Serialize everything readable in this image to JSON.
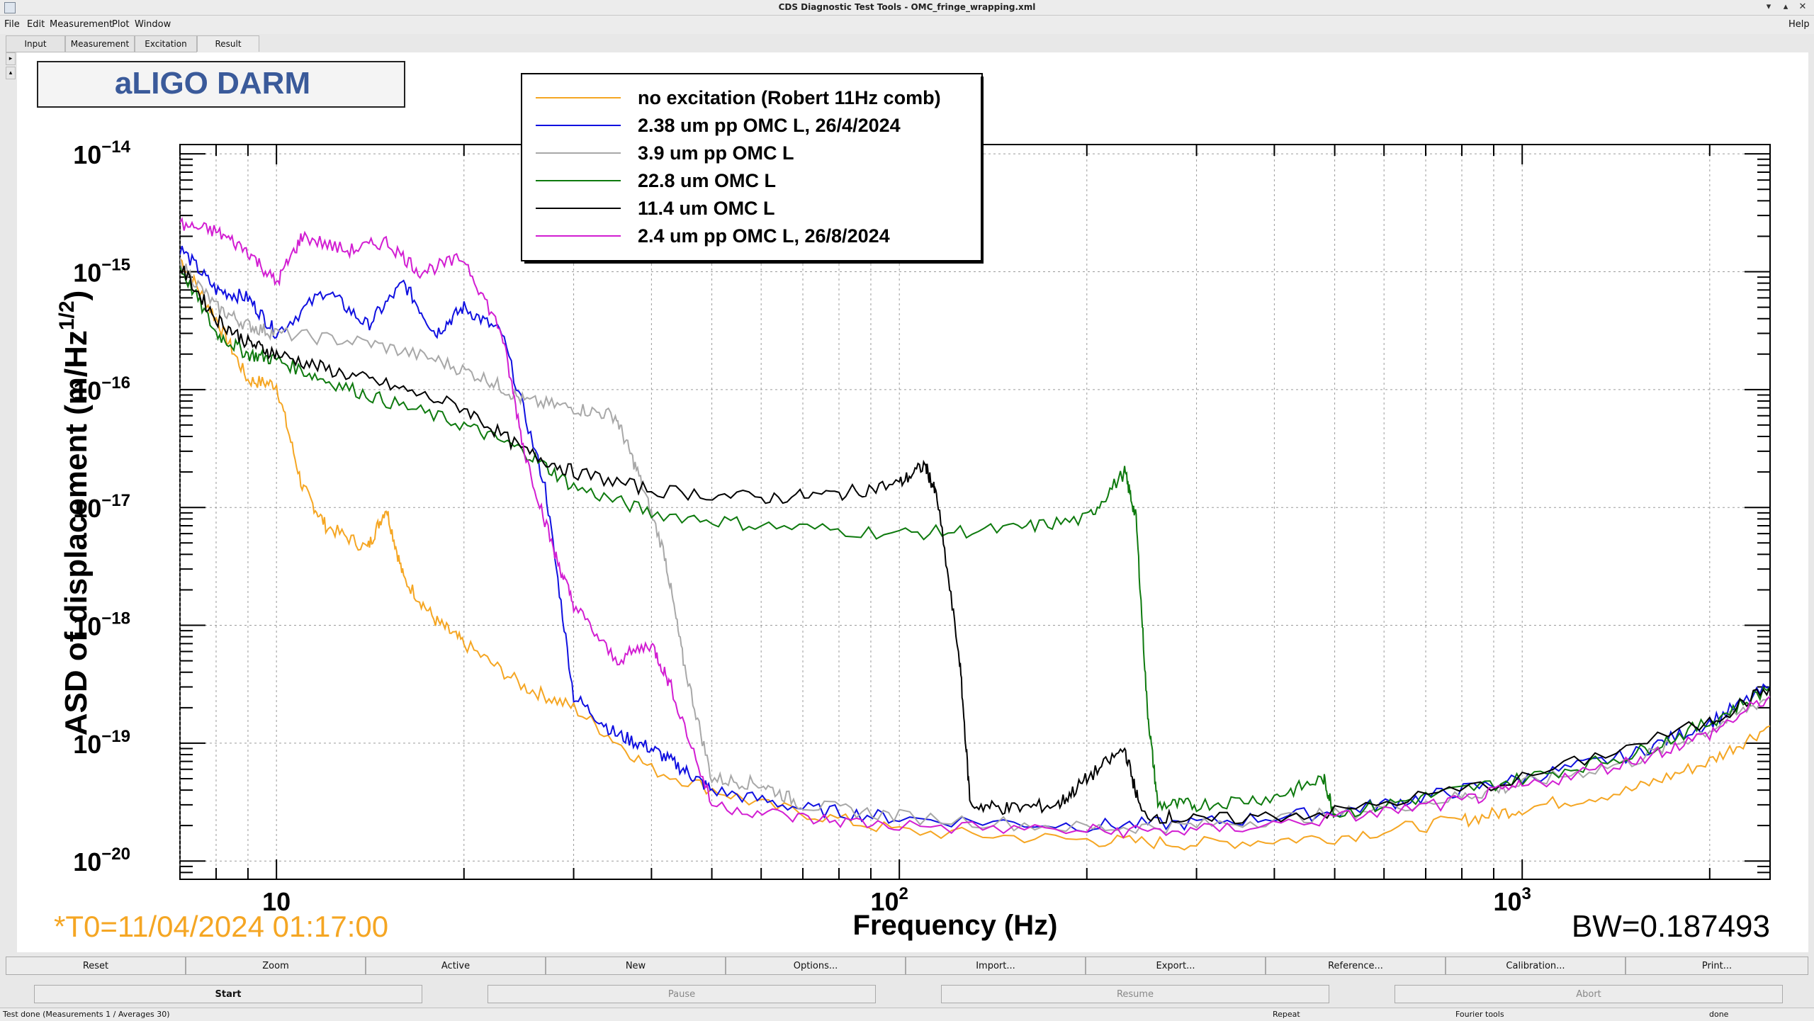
{
  "window": {
    "title": "CDS Diagnostic Test Tools - OMC_fringe_wrapping.xml",
    "help_label": "Help"
  },
  "menu": [
    "File",
    "Edit",
    "Measurement",
    "Plot",
    "Window"
  ],
  "tabs": [
    "Input",
    "Measurement",
    "Excitation",
    "Result"
  ],
  "plot": {
    "title_box": "aLIGO DARM",
    "timestamp": "*T0=11/04/2024 01:17:00",
    "bw": "BW=0.187493",
    "ylabel_main": "ASD of displacement (m/Hz",
    "ylabel_sup": "1/2",
    "ylabel_close": ")"
  },
  "chart_data": {
    "type": "line",
    "xlabel": "Frequency (Hz)",
    "xscale": "log",
    "yscale": "log",
    "xlim": [
      7,
      2500
    ],
    "ylim": [
      7e-21,
      1.2e-14
    ],
    "grid": true,
    "legend_position": "top-center",
    "x_tick_labels": [
      {
        "base": "10",
        "exp": ""
      },
      {
        "base": "10",
        "exp": "2"
      },
      {
        "base": "10",
        "exp": "3"
      }
    ],
    "y_tick_labels": [
      {
        "base": "10",
        "exp": "−14"
      },
      {
        "base": "10",
        "exp": "−15"
      },
      {
        "base": "10",
        "exp": "−16"
      },
      {
        "base": "10",
        "exp": "−17"
      },
      {
        "base": "10",
        "exp": "−18"
      },
      {
        "base": "10",
        "exp": "−19"
      },
      {
        "base": "10",
        "exp": "−20"
      }
    ],
    "series": [
      {
        "name": "no excitation (Robert 11Hz comb)",
        "color": "#f5a623",
        "points": [
          [
            7,
            1.3e-15
          ],
          [
            8,
            4e-16
          ],
          [
            9,
            1.2e-16
          ],
          [
            10,
            1.1e-16
          ],
          [
            11,
            1.5e-17
          ],
          [
            12,
            7e-18
          ],
          [
            14,
            4.5e-18
          ],
          [
            15,
            1e-17
          ],
          [
            16,
            2.5e-18
          ],
          [
            18,
            1.1e-18
          ],
          [
            20,
            7e-19
          ],
          [
            25,
            3e-19
          ],
          [
            30,
            2e-19
          ],
          [
            40,
            6e-20
          ],
          [
            60,
            3e-20
          ],
          [
            100,
            1.8e-20
          ],
          [
            200,
            1.5e-20
          ],
          [
            300,
            1.4e-20
          ],
          [
            500,
            1.6e-20
          ],
          [
            800,
            2.2e-20
          ],
          [
            1000,
            2.8e-20
          ],
          [
            1500,
            4e-20
          ],
          [
            2000,
            7e-20
          ],
          [
            2500,
            1.4e-19
          ]
        ]
      },
      {
        "name": "2.38 um pp OMC L, 26/4/2024",
        "color": "#1010e0",
        "points": [
          [
            7,
            1.6e-15
          ],
          [
            8,
            7e-16
          ],
          [
            9,
            6e-16
          ],
          [
            10,
            3e-16
          ],
          [
            12,
            7e-16
          ],
          [
            14,
            3.5e-16
          ],
          [
            16,
            8e-16
          ],
          [
            18,
            3e-16
          ],
          [
            20,
            5e-16
          ],
          [
            23,
            3e-16
          ],
          [
            27,
            1.5e-17
          ],
          [
            30,
            2.5e-19
          ],
          [
            35,
            1.2e-19
          ],
          [
            40,
            9e-20
          ],
          [
            45,
            6e-20
          ],
          [
            50,
            4e-20
          ],
          [
            70,
            2.8e-20
          ],
          [
            100,
            2.3e-20
          ],
          [
            200,
            2e-20
          ],
          [
            300,
            2.1e-20
          ],
          [
            500,
            2.6e-20
          ],
          [
            700,
            3.5e-20
          ],
          [
            1000,
            5e-20
          ],
          [
            1500,
            8e-20
          ],
          [
            2000,
            1.5e-19
          ],
          [
            2500,
            3e-19
          ]
        ]
      },
      {
        "name": "3.9 um pp OMC L",
        "color": "#a8a8a8",
        "points": [
          [
            7,
            1.2e-15
          ],
          [
            8,
            5e-16
          ],
          [
            9,
            3.5e-16
          ],
          [
            10,
            3e-16
          ],
          [
            14,
            2.5e-16
          ],
          [
            18,
            1.8e-16
          ],
          [
            22,
            1.2e-16
          ],
          [
            25,
            8e-17
          ],
          [
            30,
            7e-17
          ],
          [
            35,
            6e-17
          ],
          [
            38,
            2e-17
          ],
          [
            42,
            4e-18
          ],
          [
            45,
            5e-19
          ],
          [
            50,
            5e-20
          ],
          [
            60,
            4.5e-20
          ],
          [
            70,
            3e-20
          ],
          [
            100,
            2.4e-20
          ],
          [
            200,
            1.9e-20
          ],
          [
            300,
            2e-20
          ],
          [
            500,
            2.5e-20
          ],
          [
            800,
            3.5e-20
          ],
          [
            1000,
            4.5e-20
          ],
          [
            1500,
            7e-20
          ],
          [
            2000,
            1.3e-19
          ],
          [
            2500,
            2.5e-19
          ]
        ]
      },
      {
        "name": "22.8 um OMC L",
        "color": "#0e7a0e",
        "points": [
          [
            7,
            1.1e-15
          ],
          [
            8,
            3e-16
          ],
          [
            9,
            2e-16
          ],
          [
            10,
            1.8e-16
          ],
          [
            12,
            1.2e-16
          ],
          [
            15,
            8e-17
          ],
          [
            20,
            5e-17
          ],
          [
            25,
            3e-17
          ],
          [
            30,
            1.5e-17
          ],
          [
            40,
            9e-18
          ],
          [
            60,
            7e-18
          ],
          [
            100,
            6e-18
          ],
          [
            150,
            6.5e-18
          ],
          [
            200,
            8e-18
          ],
          [
            230,
            2e-17
          ],
          [
            240,
            8e-18
          ],
          [
            250,
            2e-19
          ],
          [
            260,
            3e-20
          ],
          [
            300,
            3e-20
          ],
          [
            400,
            3.5e-20
          ],
          [
            480,
            5e-20
          ],
          [
            500,
            2.5e-20
          ],
          [
            700,
            3.5e-20
          ],
          [
            1000,
            5e-20
          ],
          [
            1500,
            8e-20
          ],
          [
            2000,
            1.5e-19
          ],
          [
            2500,
            3e-19
          ]
        ]
      },
      {
        "name": "11.4 um OMC L",
        "color": "#000000",
        "points": [
          [
            7,
            1.1e-15
          ],
          [
            8,
            4e-16
          ],
          [
            9,
            2.5e-16
          ],
          [
            10,
            2e-16
          ],
          [
            12,
            1.5e-16
          ],
          [
            15,
            1.1e-16
          ],
          [
            20,
            7e-17
          ],
          [
            25,
            3e-17
          ],
          [
            30,
            2e-17
          ],
          [
            40,
            1.4e-17
          ],
          [
            60,
            1.2e-17
          ],
          [
            80,
            1.3e-17
          ],
          [
            100,
            1.6e-17
          ],
          [
            110,
            2.3e-17
          ],
          [
            115,
            1.2e-17
          ],
          [
            125,
            5e-19
          ],
          [
            130,
            3e-20
          ],
          [
            150,
            2.8e-20
          ],
          [
            180,
            3e-20
          ],
          [
            200,
            5e-20
          ],
          [
            230,
            9e-20
          ],
          [
            245,
            2.5e-20
          ],
          [
            300,
            2.2e-20
          ],
          [
            500,
            2.6e-20
          ],
          [
            1000,
            5e-20
          ],
          [
            2000,
            1.5e-19
          ],
          [
            2500,
            3e-19
          ]
        ]
      },
      {
        "name": "2.4 um pp OMC L, 26/8/2024",
        "color": "#d21ed2",
        "points": [
          [
            7,
            2.5e-15
          ],
          [
            8,
            2.2e-15
          ],
          [
            9,
            1.5e-15
          ],
          [
            10,
            8e-16
          ],
          [
            11,
            2e-15
          ],
          [
            13,
            1.5e-15
          ],
          [
            15,
            1.8e-15
          ],
          [
            17,
            1e-15
          ],
          [
            20,
            1.3e-15
          ],
          [
            23,
            3e-16
          ],
          [
            25,
            3e-17
          ],
          [
            28,
            4e-18
          ],
          [
            30,
            1.5e-18
          ],
          [
            35,
            5e-19
          ],
          [
            40,
            7e-19
          ],
          [
            43,
            3e-19
          ],
          [
            50,
            3e-20
          ],
          [
            70,
            2.3e-20
          ],
          [
            100,
            2e-20
          ],
          [
            200,
            1.8e-20
          ],
          [
            300,
            1.8e-20
          ],
          [
            500,
            2.3e-20
          ],
          [
            800,
            3.2e-20
          ],
          [
            1000,
            4.3e-20
          ],
          [
            1500,
            7e-20
          ],
          [
            2000,
            1.2e-19
          ],
          [
            2500,
            2.5e-19
          ]
        ]
      }
    ]
  },
  "buttons_row1": [
    "Reset",
    "Zoom",
    "Active",
    "New",
    "Options...",
    "Import...",
    "Export...",
    "Reference...",
    "Calibration...",
    "Print..."
  ],
  "buttons_row2": [
    "Start",
    "Pause",
    "Resume",
    "Abort"
  ],
  "status": {
    "left": "Test done (Measurements 1 / Averages 30)",
    "repeat": "Repeat",
    "fourier": "Fourier tools",
    "done": "done"
  }
}
